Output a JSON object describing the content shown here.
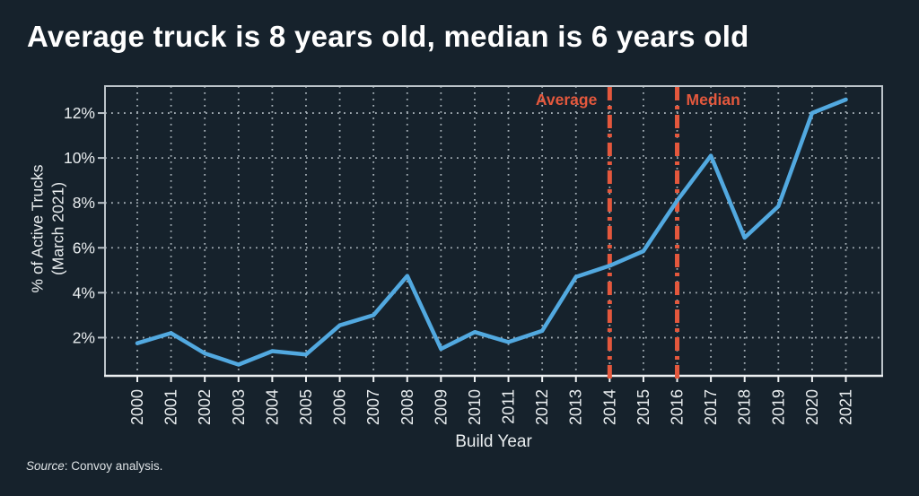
{
  "title": "Average truck is 8 years old, median is 6 years old",
  "source": {
    "label": "Source",
    "text": ": Convoy analysis."
  },
  "chart_data": {
    "type": "line",
    "title": "Average truck is 8 years old, median is 6 years old",
    "xlabel": "Build Year",
    "ylabel": "% of Active Trucks (March 2021)",
    "ylabel_lines": [
      "% of Active Trucks",
      "(March 2021)"
    ],
    "categories": [
      "2000",
      "2001",
      "2002",
      "2003",
      "2004",
      "2005",
      "2006",
      "2007",
      "2008",
      "2009",
      "2010",
      "2011",
      "2012",
      "2013",
      "2014",
      "2015",
      "2016",
      "2017",
      "2018",
      "2019",
      "2020",
      "2021"
    ],
    "values": [
      1.75,
      2.2,
      1.3,
      0.8,
      1.4,
      1.25,
      2.55,
      3.0,
      4.75,
      1.5,
      2.25,
      1.8,
      2.3,
      4.7,
      5.2,
      5.85,
      8.1,
      10.1,
      6.45,
      7.85,
      12.0,
      12.6
    ],
    "y_ticks": [
      2,
      4,
      6,
      8,
      10,
      12
    ],
    "y_tick_suffix": "%",
    "ylim": [
      0.3,
      13.2
    ],
    "grid": "dotted, horizontal and vertical",
    "legend": "none",
    "annotations": [
      {
        "label": "Average",
        "year": "2014",
        "align": "right"
      },
      {
        "label": "Median",
        "year": "2016",
        "align": "left"
      }
    ],
    "colors": {
      "background": "#16222c",
      "line": "#52a9e0",
      "annotation": "#e4583d",
      "grid": "#a5afb6",
      "frame": "#bcc4ca",
      "axis": "#edf0f2",
      "text": "#e9edef"
    }
  }
}
